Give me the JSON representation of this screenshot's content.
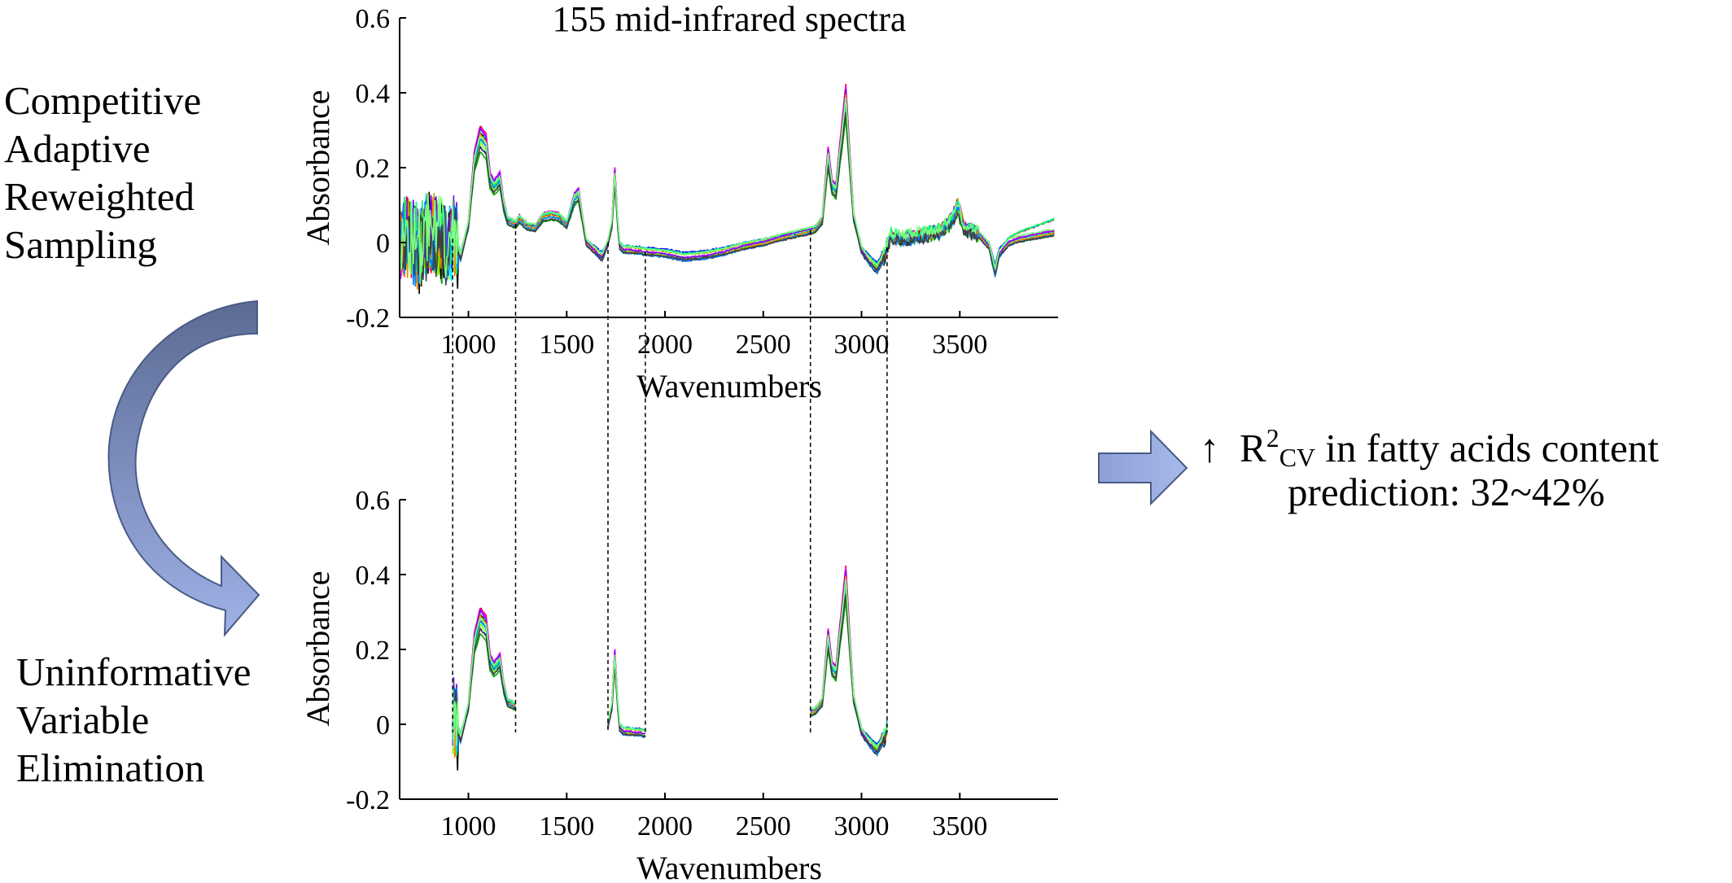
{
  "methods": {
    "cars_lines": [
      "Competitive",
      "Adaptive",
      "Reweighted",
      "Sampling"
    ],
    "uve_lines": [
      "Uninformative",
      "Variable",
      "Elimination"
    ]
  },
  "result": {
    "arrow_glyph": "↑",
    "r_letter": "R",
    "superscript": "2",
    "subscript": "CV",
    "line1_rest": "in fatty acids content",
    "line2": "prediction: 32~42%"
  },
  "colors": {
    "arrow_fill_dark": "#5b6b94",
    "arrow_fill_light": "#9fb1e6",
    "arrow_stroke": "#4a5a86",
    "series_palette": [
      "#0000ff",
      "#ff0000",
      "#00aa00",
      "#00ffff",
      "#ff00ff",
      "#aaaa00",
      "#000000",
      "#7fff00",
      "#8000ff",
      "#ff8000",
      "#00ff80",
      "#0080ff",
      "#404040",
      "#80ff80"
    ]
  },
  "chart_data": [
    {
      "type": "line",
      "title": "155 mid-infrared spectra",
      "xlabel": "Wavenumbers",
      "ylabel": "Absorbance",
      "xlim": [
        650,
        4000
      ],
      "ylim": [
        -0.2,
        0.6
      ],
      "xticks": [
        1000,
        1500,
        2000,
        2500,
        3000,
        3500
      ],
      "yticks": [
        -0.2,
        0,
        0.2,
        0.4,
        0.6
      ],
      "ytick_labels": [
        "-0.2",
        "0",
        "0.2",
        "0.4",
        "0.6"
      ],
      "grid": false,
      "n_series": 155,
      "mean_spectrum": {
        "x": [
          650,
          700,
          750,
          800,
          850,
          900,
          930,
          960,
          1000,
          1030,
          1060,
          1090,
          1110,
          1130,
          1160,
          1180,
          1200,
          1240,
          1260,
          1300,
          1340,
          1380,
          1420,
          1460,
          1500,
          1540,
          1560,
          1600,
          1640,
          1680,
          1710,
          1730,
          1745,
          1760,
          1770,
          1790,
          1830,
          1900,
          2000,
          2100,
          2200,
          2300,
          2400,
          2500,
          2600,
          2700,
          2760,
          2800,
          2830,
          2850,
          2870,
          2890,
          2920,
          2940,
          2960,
          3000,
          3040,
          3080,
          3120,
          3150,
          3200,
          3300,
          3400,
          3460,
          3490,
          3520,
          3600,
          3650,
          3680,
          3700,
          3750,
          3800,
          3900,
          4000
        ],
        "y": [
          0.0,
          0.02,
          -0.02,
          0.03,
          0.01,
          -0.01,
          0.02,
          -0.04,
          0.05,
          0.22,
          0.28,
          0.26,
          0.17,
          0.15,
          0.17,
          0.1,
          0.06,
          0.05,
          0.065,
          0.045,
          0.04,
          0.07,
          0.075,
          0.07,
          0.05,
          0.12,
          0.13,
          0.0,
          -0.02,
          -0.04,
          0.0,
          0.05,
          0.18,
          0.05,
          -0.01,
          -0.02,
          -0.02,
          -0.025,
          -0.03,
          -0.04,
          -0.035,
          -0.025,
          -0.01,
          0.0,
          0.015,
          0.028,
          0.035,
          0.06,
          0.23,
          0.15,
          0.14,
          0.24,
          0.38,
          0.22,
          0.07,
          -0.02,
          -0.05,
          -0.07,
          -0.03,
          0.02,
          0.01,
          0.02,
          0.03,
          0.06,
          0.1,
          0.04,
          0.02,
          -0.01,
          -0.08,
          -0.03,
          0.0,
          0.01,
          0.02,
          0.03
        ]
      },
      "variability_note": "noisy region 650-950 cm-1 spanning about -0.16 to 0.4"
    },
    {
      "type": "line",
      "xlabel": "Wavenumbers",
      "ylabel": "Absorbance",
      "xlim": [
        650,
        4000
      ],
      "ylim": [
        -0.2,
        0.6
      ],
      "xticks": [
        1000,
        1500,
        2000,
        2500,
        3000,
        3500
      ],
      "yticks": [
        -0.2,
        0,
        0.2,
        0.4,
        0.6
      ],
      "ytick_labels": [
        "-0.2",
        "0",
        "0.2",
        "0.4",
        "0.6"
      ],
      "grid": false,
      "selected_intervals": [
        [
          920,
          1240
        ],
        [
          1710,
          1900
        ],
        [
          2740,
          3130
        ]
      ],
      "note": "same spectra retained only in selected wavenumber intervals"
    }
  ]
}
